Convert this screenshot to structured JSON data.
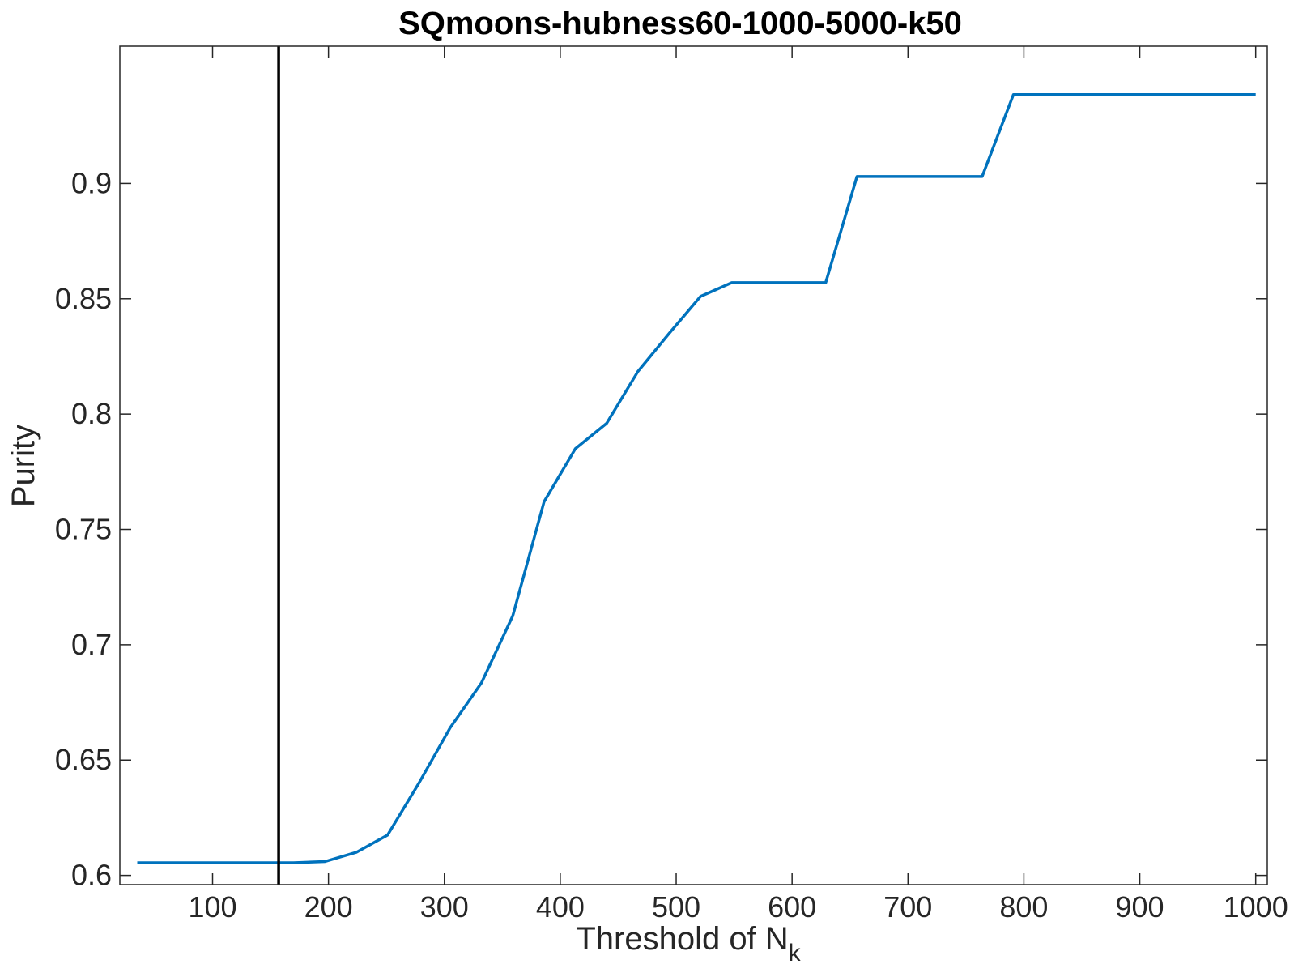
{
  "chart_data": {
    "type": "line",
    "title": "SQmoons-hubness60-1000-5000-k50",
    "xlabel": "Threshold of N",
    "xlabel_subscript": "k",
    "ylabel": "Purity",
    "xlim": [
      20,
      1010
    ],
    "ylim": [
      0.596,
      0.9595
    ],
    "xticks": [
      100,
      200,
      300,
      400,
      500,
      600,
      700,
      800,
      900,
      1000
    ],
    "yticks": [
      0.6,
      0.65,
      0.7,
      0.75,
      0.8,
      0.85,
      0.9
    ],
    "xtick_labels": [
      "100",
      "200",
      "300",
      "400",
      "500",
      "600",
      "700",
      "800",
      "900",
      "1000"
    ],
    "ytick_labels": [
      "0.6",
      "0.65",
      "0.7",
      "0.75",
      "0.8",
      "0.85",
      "0.9"
    ],
    "grid": false,
    "vline": {
      "x": 157,
      "color": "#000000"
    },
    "series": [
      {
        "color": "#0072BD",
        "x": [
          35,
          62,
          89,
          116,
          143,
          170,
          197,
          224,
          251,
          278,
          305,
          332,
          359,
          386,
          413,
          440,
          467,
          494,
          521,
          548,
          575,
          602,
          629,
          656,
          683,
          710,
          737,
          764,
          791,
          818,
          845,
          872,
          899,
          926,
          953,
          980,
          1000
        ],
        "y": [
          0.6055,
          0.6055,
          0.6055,
          0.6055,
          0.6055,
          0.6055,
          0.606,
          0.61,
          0.6175,
          0.64,
          0.664,
          0.6835,
          0.7125,
          0.762,
          0.785,
          0.796,
          0.8185,
          0.835,
          0.851,
          0.857,
          0.857,
          0.857,
          0.857,
          0.903,
          0.903,
          0.903,
          0.903,
          0.903,
          0.9385,
          0.9385,
          0.9385,
          0.9385,
          0.9385,
          0.9385,
          0.9385,
          0.9385,
          0.9385
        ]
      }
    ]
  }
}
